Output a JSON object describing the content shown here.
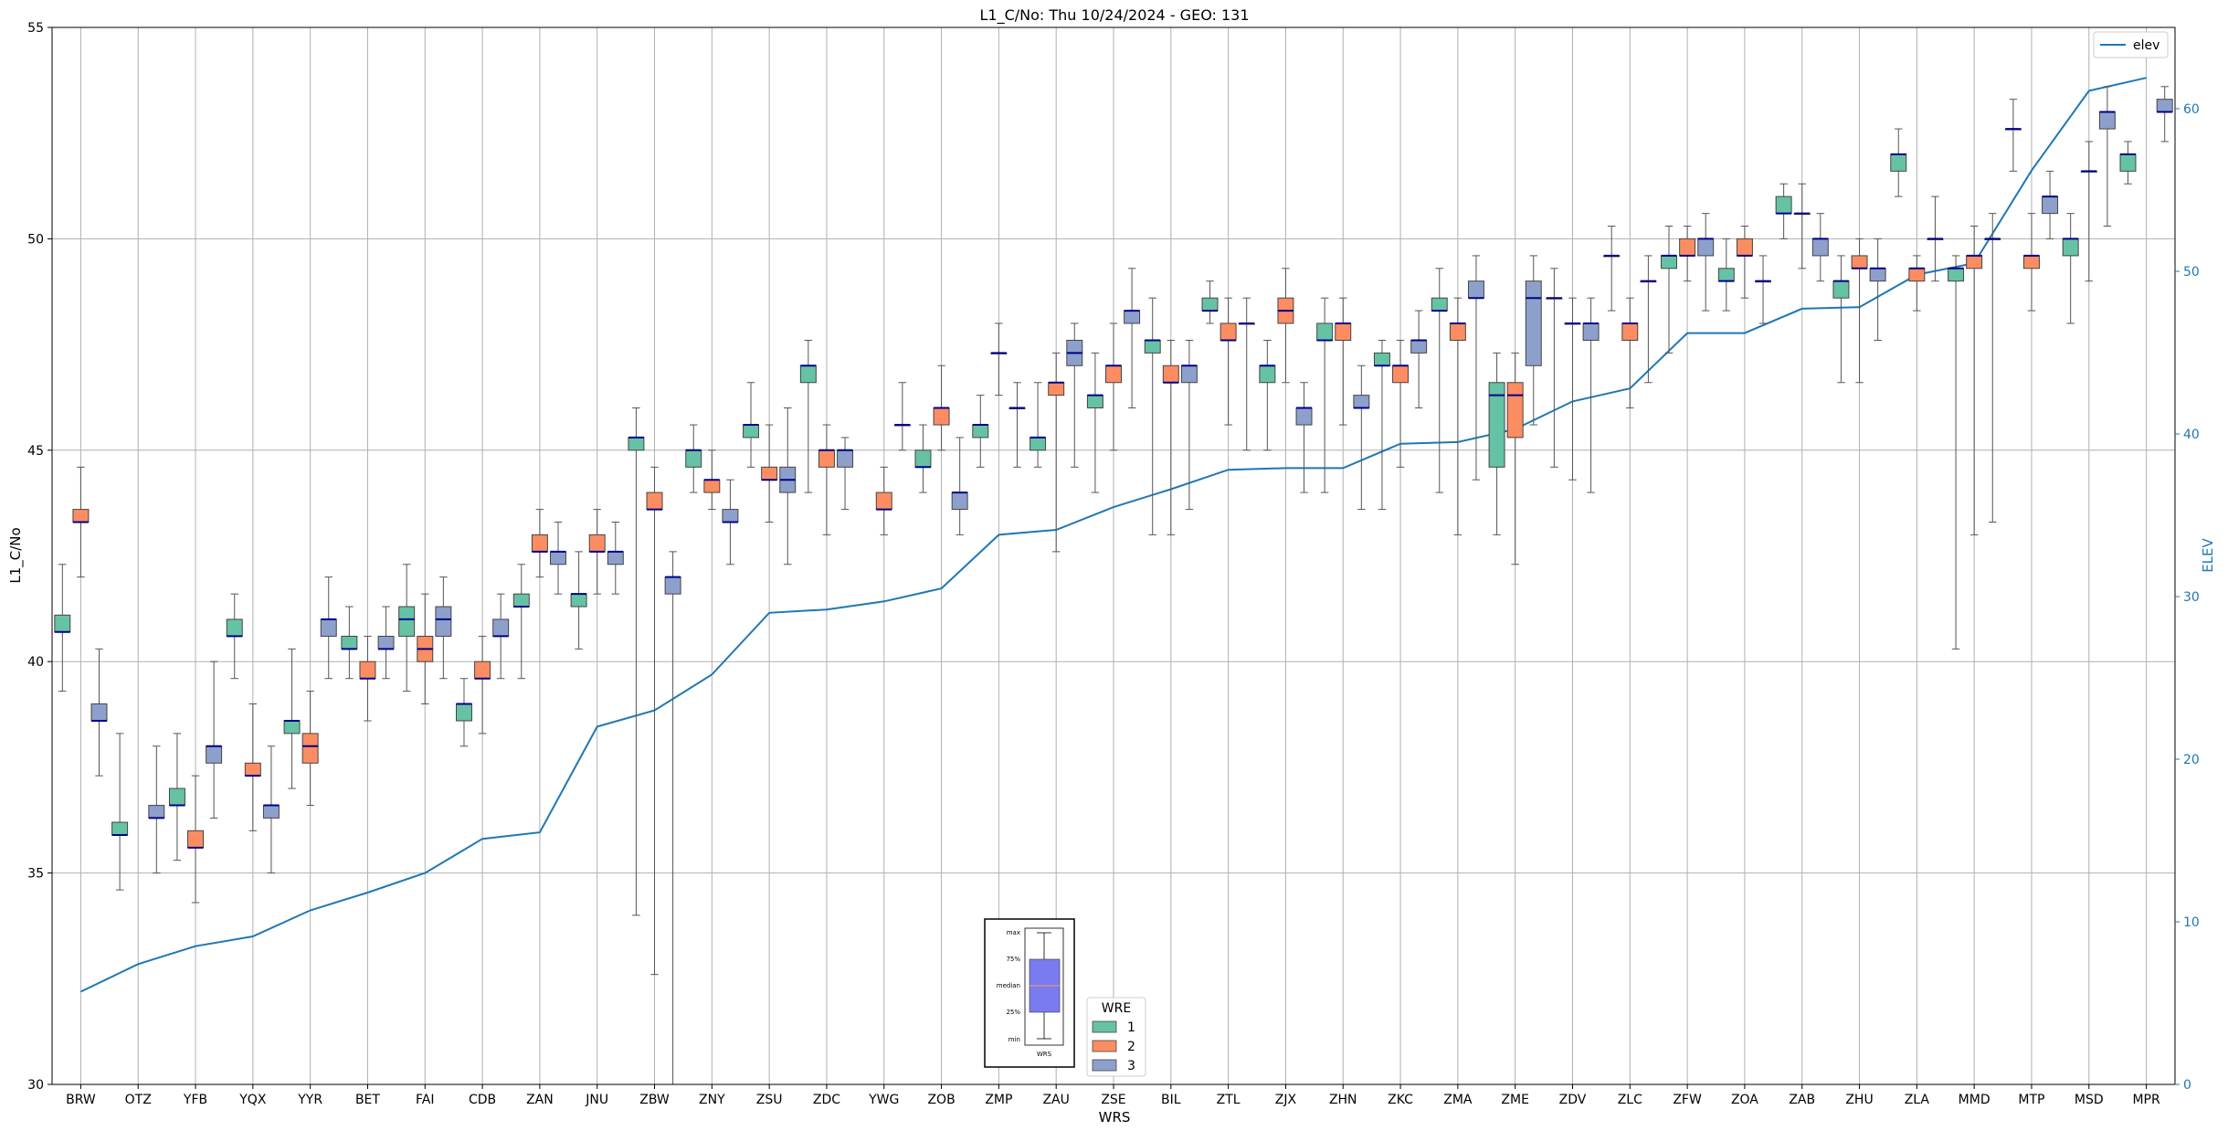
{
  "chart_data": {
    "type": "box",
    "title": "L1_C/No: Thu 10/24/2024 - GEO: 131",
    "xlabel": "WRS",
    "ylabel": "L1_C/No",
    "y2label": "ELEV",
    "ylim": [
      30,
      55
    ],
    "y2lim": [
      0,
      65
    ],
    "yticks": [
      30,
      35,
      40,
      45,
      50,
      55
    ],
    "y2ticks": [
      0,
      10,
      20,
      30,
      40,
      50,
      60
    ],
    "grid": true,
    "categories": [
      "BRW",
      "OTZ",
      "YFB",
      "YQX",
      "YYR",
      "BET",
      "FAI",
      "CDB",
      "ZAN",
      "JNU",
      "ZBW",
      "ZNY",
      "ZSU",
      "ZDC",
      "YWG",
      "ZOB",
      "ZMP",
      "ZAU",
      "ZSE",
      "BIL",
      "ZTL",
      "ZJX",
      "ZHN",
      "ZKC",
      "ZMA",
      "ZME",
      "ZDV",
      "ZLC",
      "ZFW",
      "ZOA",
      "ZAB",
      "ZHU",
      "ZLA",
      "MMD",
      "MTP",
      "MSD",
      "MPR"
    ],
    "colors": {
      "1": "#66c2a5",
      "2": "#fc8d62",
      "3": "#8da0cb",
      "elev": "#1f77b4",
      "median": "#00008b"
    },
    "legend": {
      "title": "WRE",
      "entries": [
        "1",
        "2",
        "3"
      ],
      "position": "bottom-center"
    },
    "line_legend": {
      "label": "elev",
      "position": "top-right"
    },
    "key_box": {
      "labels": [
        "max",
        "75%",
        "median",
        "25%",
        "min"
      ],
      "xlabel": "WRS"
    },
    "elev": [
      5.7,
      7.4,
      8.5,
      9.1,
      10.7,
      11.8,
      13.0,
      15.1,
      15.5,
      22.0,
      23.0,
      25.2,
      29.0,
      29.2,
      29.7,
      30.5,
      33.8,
      34.1,
      35.5,
      36.6,
      37.8,
      37.9,
      37.9,
      39.4,
      39.5,
      40.3,
      42.0,
      42.8,
      46.2,
      46.2,
      47.7,
      47.8,
      49.8,
      50.5,
      56.2,
      61.1,
      61.9
    ],
    "boxes": [
      {
        "cat": "BRW",
        "wre": "1",
        "min": 39.3,
        "q1": 40.7,
        "median": 40.7,
        "q3": 41.1,
        "max": 42.3
      },
      {
        "cat": "BRW",
        "wre": "2",
        "min": 42.0,
        "q1": 43.3,
        "median": 43.3,
        "q3": 43.6,
        "max": 44.6
      },
      {
        "cat": "BRW",
        "wre": "3",
        "min": 37.3,
        "q1": 38.6,
        "median": 38.6,
        "q3": 39.0,
        "max": 40.3
      },
      {
        "cat": "OTZ",
        "wre": "1",
        "min": 34.6,
        "q1": 35.9,
        "median": 35.9,
        "q3": 36.2,
        "max": 38.3
      },
      {
        "cat": "OTZ",
        "wre": "3",
        "min": 35.0,
        "q1": 36.3,
        "median": 36.3,
        "q3": 36.6,
        "max": 38.0
      },
      {
        "cat": "YFB",
        "wre": "1",
        "min": 35.3,
        "q1": 36.6,
        "median": 36.6,
        "q3": 37.0,
        "max": 38.3
      },
      {
        "cat": "YFB",
        "wre": "2",
        "min": 34.3,
        "q1": 35.6,
        "median": 35.6,
        "q3": 36.0,
        "max": 37.3
      },
      {
        "cat": "YFB",
        "wre": "3",
        "min": 36.3,
        "q1": 37.6,
        "median": 38.0,
        "q3": 38.0,
        "max": 40.0
      },
      {
        "cat": "YQX",
        "wre": "1",
        "min": 39.6,
        "q1": 40.6,
        "median": 40.6,
        "q3": 41.0,
        "max": 41.6
      },
      {
        "cat": "YQX",
        "wre": "2",
        "min": 36.0,
        "q1": 37.3,
        "median": 37.3,
        "q3": 37.6,
        "max": 39.0
      },
      {
        "cat": "YQX",
        "wre": "3",
        "min": 35.0,
        "q1": 36.3,
        "median": 36.6,
        "q3": 36.6,
        "max": 38.0
      },
      {
        "cat": "YYR",
        "wre": "1",
        "min": 37.0,
        "q1": 38.3,
        "median": 38.6,
        "q3": 38.6,
        "max": 40.3
      },
      {
        "cat": "YYR",
        "wre": "2",
        "min": 36.6,
        "q1": 37.6,
        "median": 38.0,
        "q3": 38.3,
        "max": 39.3
      },
      {
        "cat": "YYR",
        "wre": "3",
        "min": 39.6,
        "q1": 40.6,
        "median": 41.0,
        "q3": 41.0,
        "max": 42.0
      },
      {
        "cat": "BET",
        "wre": "1",
        "min": 39.6,
        "q1": 40.3,
        "median": 40.3,
        "q3": 40.6,
        "max": 41.3
      },
      {
        "cat": "BET",
        "wre": "2",
        "min": 38.6,
        "q1": 39.6,
        "median": 39.6,
        "q3": 40.0,
        "max": 40.6
      },
      {
        "cat": "BET",
        "wre": "3",
        "min": 39.6,
        "q1": 40.3,
        "median": 40.3,
        "q3": 40.6,
        "max": 41.3
      },
      {
        "cat": "FAI",
        "wre": "1",
        "min": 39.3,
        "q1": 40.6,
        "median": 41.0,
        "q3": 41.3,
        "max": 42.3
      },
      {
        "cat": "FAI",
        "wre": "2",
        "min": 39.0,
        "q1": 40.0,
        "median": 40.3,
        "q3": 40.6,
        "max": 41.6
      },
      {
        "cat": "FAI",
        "wre": "3",
        "min": 39.6,
        "q1": 40.6,
        "median": 41.0,
        "q3": 41.3,
        "max": 42.0
      },
      {
        "cat": "CDB",
        "wre": "1",
        "min": 38.0,
        "q1": 38.6,
        "median": 39.0,
        "q3": 39.0,
        "max": 39.6
      },
      {
        "cat": "CDB",
        "wre": "2",
        "min": 38.3,
        "q1": 39.6,
        "median": 39.6,
        "q3": 40.0,
        "max": 40.6
      },
      {
        "cat": "CDB",
        "wre": "3",
        "min": 39.6,
        "q1": 40.6,
        "median": 40.6,
        "q3": 41.0,
        "max": 41.6
      },
      {
        "cat": "ZAN",
        "wre": "1",
        "min": 39.6,
        "q1": 41.3,
        "median": 41.3,
        "q3": 41.6,
        "max": 42.3
      },
      {
        "cat": "ZAN",
        "wre": "2",
        "min": 42.0,
        "q1": 42.6,
        "median": 42.6,
        "q3": 43.0,
        "max": 43.6
      },
      {
        "cat": "ZAN",
        "wre": "3",
        "min": 41.6,
        "q1": 42.3,
        "median": 42.6,
        "q3": 42.6,
        "max": 43.3
      },
      {
        "cat": "JNU",
        "wre": "1",
        "min": 40.3,
        "q1": 41.3,
        "median": 41.6,
        "q3": 41.6,
        "max": 42.6
      },
      {
        "cat": "JNU",
        "wre": "2",
        "min": 41.6,
        "q1": 42.6,
        "median": 42.6,
        "q3": 43.0,
        "max": 43.6
      },
      {
        "cat": "JNU",
        "wre": "3",
        "min": 41.6,
        "q1": 42.3,
        "median": 42.6,
        "q3": 42.6,
        "max": 43.3
      },
      {
        "cat": "ZBW",
        "wre": "1",
        "min": 34.0,
        "q1": 45.0,
        "median": 45.3,
        "q3": 45.3,
        "max": 46.0
      },
      {
        "cat": "ZBW",
        "wre": "2",
        "min": 32.6,
        "q1": 43.6,
        "median": 43.6,
        "q3": 44.0,
        "max": 44.6
      },
      {
        "cat": "ZBW",
        "wre": "3",
        "min": 30.0,
        "q1": 41.6,
        "median": 42.0,
        "q3": 42.0,
        "max": 42.6
      },
      {
        "cat": "ZNY",
        "wre": "1",
        "min": 44.0,
        "q1": 44.6,
        "median": 45.0,
        "q3": 45.0,
        "max": 45.6
      },
      {
        "cat": "ZNY",
        "wre": "2",
        "min": 43.6,
        "q1": 44.0,
        "median": 44.3,
        "q3": 44.3,
        "max": 45.0
      },
      {
        "cat": "ZNY",
        "wre": "3",
        "min": 42.3,
        "q1": 43.3,
        "median": 43.3,
        "q3": 43.6,
        "max": 44.3
      },
      {
        "cat": "ZSU",
        "wre": "1",
        "min": 44.6,
        "q1": 45.3,
        "median": 45.6,
        "q3": 45.6,
        "max": 46.6
      },
      {
        "cat": "ZSU",
        "wre": "2",
        "min": 43.3,
        "q1": 44.3,
        "median": 44.3,
        "q3": 44.6,
        "max": 45.6
      },
      {
        "cat": "ZSU",
        "wre": "3",
        "min": 42.3,
        "q1": 44.0,
        "median": 44.3,
        "q3": 44.6,
        "max": 46.0
      },
      {
        "cat": "ZDC",
        "wre": "1",
        "min": 44.0,
        "q1": 46.6,
        "median": 47.0,
        "q3": 47.0,
        "max": 47.6
      },
      {
        "cat": "ZDC",
        "wre": "2",
        "min": 43.0,
        "q1": 44.6,
        "median": 45.0,
        "q3": 45.0,
        "max": 45.6
      },
      {
        "cat": "ZDC",
        "wre": "3",
        "min": 43.6,
        "q1": 44.6,
        "median": 45.0,
        "q3": 45.0,
        "max": 45.3
      },
      {
        "cat": "YWG",
        "wre": "2",
        "min": 43.0,
        "q1": 43.6,
        "median": 43.6,
        "q3": 44.0,
        "max": 44.6
      },
      {
        "cat": "YWG",
        "wre": "3",
        "min": 45.0,
        "q1": 45.6,
        "median": 45.6,
        "q3": 45.6,
        "max": 46.6
      },
      {
        "cat": "ZOB",
        "wre": "1",
        "min": 44.0,
        "q1": 44.6,
        "median": 44.6,
        "q3": 45.0,
        "max": 45.6
      },
      {
        "cat": "ZOB",
        "wre": "2",
        "min": 45.0,
        "q1": 45.6,
        "median": 46.0,
        "q3": 46.0,
        "max": 47.0
      },
      {
        "cat": "ZOB",
        "wre": "3",
        "min": 43.0,
        "q1": 43.6,
        "median": 44.0,
        "q3": 44.0,
        "max": 45.3
      },
      {
        "cat": "ZMP",
        "wre": "1",
        "min": 44.6,
        "q1": 45.3,
        "median": 45.6,
        "q3": 45.6,
        "max": 46.3
      },
      {
        "cat": "ZMP",
        "wre": "2",
        "min": 46.3,
        "q1": 47.3,
        "median": 47.3,
        "q3": 47.3,
        "max": 48.0
      },
      {
        "cat": "ZMP",
        "wre": "3",
        "min": 44.6,
        "q1": 46.0,
        "median": 46.0,
        "q3": 46.0,
        "max": 46.6
      },
      {
        "cat": "ZAU",
        "wre": "1",
        "min": 44.6,
        "q1": 45.0,
        "median": 45.3,
        "q3": 45.3,
        "max": 46.6
      },
      {
        "cat": "ZAU",
        "wre": "2",
        "min": 42.6,
        "q1": 46.3,
        "median": 46.6,
        "q3": 46.6,
        "max": 47.3
      },
      {
        "cat": "ZAU",
        "wre": "3",
        "min": 44.6,
        "q1": 47.0,
        "median": 47.3,
        "q3": 47.6,
        "max": 48.0
      },
      {
        "cat": "ZSE",
        "wre": "1",
        "min": 44.0,
        "q1": 46.0,
        "median": 46.3,
        "q3": 46.3,
        "max": 47.3
      },
      {
        "cat": "ZSE",
        "wre": "2",
        "min": 45.0,
        "q1": 46.6,
        "median": 47.0,
        "q3": 47.0,
        "max": 48.0
      },
      {
        "cat": "ZSE",
        "wre": "3",
        "min": 46.0,
        "q1": 48.0,
        "median": 48.3,
        "q3": 48.3,
        "max": 49.3
      },
      {
        "cat": "BIL",
        "wre": "1",
        "min": 43.0,
        "q1": 47.3,
        "median": 47.6,
        "q3": 47.6,
        "max": 48.6
      },
      {
        "cat": "BIL",
        "wre": "2",
        "min": 43.0,
        "q1": 46.6,
        "median": 46.6,
        "q3": 47.0,
        "max": 47.6
      },
      {
        "cat": "BIL",
        "wre": "3",
        "min": 43.6,
        "q1": 46.6,
        "median": 47.0,
        "q3": 47.0,
        "max": 47.6
      },
      {
        "cat": "ZTL",
        "wre": "1",
        "min": 48.0,
        "q1": 48.3,
        "median": 48.3,
        "q3": 48.6,
        "max": 49.0
      },
      {
        "cat": "ZTL",
        "wre": "2",
        "min": 45.6,
        "q1": 47.6,
        "median": 47.6,
        "q3": 48.0,
        "max": 48.6
      },
      {
        "cat": "ZTL",
        "wre": "3",
        "min": 45.0,
        "q1": 48.0,
        "median": 48.0,
        "q3": 48.0,
        "max": 48.6
      },
      {
        "cat": "ZJX",
        "wre": "1",
        "min": 45.0,
        "q1": 46.6,
        "median": 47.0,
        "q3": 47.0,
        "max": 47.6
      },
      {
        "cat": "ZJX",
        "wre": "2",
        "min": 46.6,
        "q1": 48.0,
        "median": 48.3,
        "q3": 48.6,
        "max": 49.3
      },
      {
        "cat": "ZJX",
        "wre": "3",
        "min": 44.0,
        "q1": 45.6,
        "median": 46.0,
        "q3": 46.0,
        "max": 46.6
      },
      {
        "cat": "ZHN",
        "wre": "1",
        "min": 44.0,
        "q1": 47.6,
        "median": 47.6,
        "q3": 48.0,
        "max": 48.6
      },
      {
        "cat": "ZHN",
        "wre": "2",
        "min": 45.6,
        "q1": 47.6,
        "median": 48.0,
        "q3": 48.0,
        "max": 48.6
      },
      {
        "cat": "ZHN",
        "wre": "3",
        "min": 43.6,
        "q1": 46.0,
        "median": 46.0,
        "q3": 46.3,
        "max": 47.0
      },
      {
        "cat": "ZKC",
        "wre": "1",
        "min": 43.6,
        "q1": 47.0,
        "median": 47.0,
        "q3": 47.3,
        "max": 47.6
      },
      {
        "cat": "ZKC",
        "wre": "2",
        "min": 44.6,
        "q1": 46.6,
        "median": 47.0,
        "q3": 47.0,
        "max": 47.6
      },
      {
        "cat": "ZKC",
        "wre": "3",
        "min": 46.0,
        "q1": 47.3,
        "median": 47.6,
        "q3": 47.6,
        "max": 48.3
      },
      {
        "cat": "ZMA",
        "wre": "1",
        "min": 44.0,
        "q1": 48.3,
        "median": 48.3,
        "q3": 48.6,
        "max": 49.3
      },
      {
        "cat": "ZMA",
        "wre": "2",
        "min": 43.0,
        "q1": 47.6,
        "median": 48.0,
        "q3": 48.0,
        "max": 48.6
      },
      {
        "cat": "ZMA",
        "wre": "3",
        "min": 44.3,
        "q1": 48.6,
        "median": 48.6,
        "q3": 49.0,
        "max": 49.6
      },
      {
        "cat": "ZME",
        "wre": "1",
        "min": 43.0,
        "q1": 44.6,
        "median": 46.3,
        "q3": 46.6,
        "max": 47.3
      },
      {
        "cat": "ZME",
        "wre": "2",
        "min": 42.3,
        "q1": 45.3,
        "median": 46.3,
        "q3": 46.6,
        "max": 47.3
      },
      {
        "cat": "ZME",
        "wre": "3",
        "min": 45.6,
        "q1": 47.0,
        "median": 48.6,
        "q3": 49.0,
        "max": 49.6
      },
      {
        "cat": "ZDV",
        "wre": "1",
        "min": 44.6,
        "q1": 48.6,
        "median": 48.6,
        "q3": 48.6,
        "max": 49.3
      },
      {
        "cat": "ZDV",
        "wre": "2",
        "min": 44.3,
        "q1": 48.0,
        "median": 48.0,
        "q3": 48.0,
        "max": 48.6
      },
      {
        "cat": "ZDV",
        "wre": "3",
        "min": 44.0,
        "q1": 47.6,
        "median": 48.0,
        "q3": 48.0,
        "max": 48.6
      },
      {
        "cat": "ZLC",
        "wre": "1",
        "min": 48.3,
        "q1": 49.6,
        "median": 49.6,
        "q3": 49.6,
        "max": 50.3
      },
      {
        "cat": "ZLC",
        "wre": "2",
        "min": 46.0,
        "q1": 47.6,
        "median": 48.0,
        "q3": 48.0,
        "max": 48.6
      },
      {
        "cat": "ZLC",
        "wre": "3",
        "min": 46.6,
        "q1": 49.0,
        "median": 49.0,
        "q3": 49.0,
        "max": 49.6
      },
      {
        "cat": "ZFW",
        "wre": "1",
        "min": 47.3,
        "q1": 49.3,
        "median": 49.6,
        "q3": 49.6,
        "max": 50.3
      },
      {
        "cat": "ZFW",
        "wre": "2",
        "min": 49.0,
        "q1": 49.6,
        "median": 49.6,
        "q3": 50.0,
        "max": 50.3
      },
      {
        "cat": "ZFW",
        "wre": "3",
        "min": 48.3,
        "q1": 49.6,
        "median": 50.0,
        "q3": 50.0,
        "max": 50.6
      },
      {
        "cat": "ZOA",
        "wre": "1",
        "min": 48.3,
        "q1": 49.0,
        "median": 49.0,
        "q3": 49.3,
        "max": 50.0
      },
      {
        "cat": "ZOA",
        "wre": "2",
        "min": 48.6,
        "q1": 49.6,
        "median": 49.6,
        "q3": 50.0,
        "max": 50.3
      },
      {
        "cat": "ZOA",
        "wre": "3",
        "min": 48.0,
        "q1": 49.0,
        "median": 49.0,
        "q3": 49.0,
        "max": 49.6
      },
      {
        "cat": "ZAB",
        "wre": "1",
        "min": 50.0,
        "q1": 50.6,
        "median": 50.6,
        "q3": 51.0,
        "max": 51.3
      },
      {
        "cat": "ZAB",
        "wre": "2",
        "min": 49.3,
        "q1": 50.6,
        "median": 50.6,
        "q3": 50.6,
        "max": 51.3
      },
      {
        "cat": "ZAB",
        "wre": "3",
        "min": 49.0,
        "q1": 49.6,
        "median": 50.0,
        "q3": 50.0,
        "max": 50.6
      },
      {
        "cat": "ZHU",
        "wre": "1",
        "min": 46.6,
        "q1": 48.6,
        "median": 49.0,
        "q3": 49.0,
        "max": 49.6
      },
      {
        "cat": "ZHU",
        "wre": "2",
        "min": 46.6,
        "q1": 49.3,
        "median": 49.3,
        "q3": 49.6,
        "max": 50.0
      },
      {
        "cat": "ZHU",
        "wre": "3",
        "min": 47.6,
        "q1": 49.0,
        "median": 49.3,
        "q3": 49.3,
        "max": 50.0
      },
      {
        "cat": "ZLA",
        "wre": "1",
        "min": 51.0,
        "q1": 51.6,
        "median": 52.0,
        "q3": 52.0,
        "max": 52.6
      },
      {
        "cat": "ZLA",
        "wre": "2",
        "min": 48.3,
        "q1": 49.0,
        "median": 49.3,
        "q3": 49.3,
        "max": 49.6
      },
      {
        "cat": "ZLA",
        "wre": "3",
        "min": 49.0,
        "q1": 50.0,
        "median": 50.0,
        "q3": 50.0,
        "max": 51.0
      },
      {
        "cat": "MMD",
        "wre": "1",
        "min": 40.3,
        "q1": 49.0,
        "median": 49.3,
        "q3": 49.3,
        "max": 49.6
      },
      {
        "cat": "MMD",
        "wre": "2",
        "min": 43.0,
        "q1": 49.3,
        "median": 49.6,
        "q3": 49.6,
        "max": 50.3
      },
      {
        "cat": "MMD",
        "wre": "3",
        "min": 43.3,
        "q1": 50.0,
        "median": 50.0,
        "q3": 50.0,
        "max": 50.6
      },
      {
        "cat": "MTP",
        "wre": "1",
        "min": 51.6,
        "q1": 52.6,
        "median": 52.6,
        "q3": 52.6,
        "max": 53.3
      },
      {
        "cat": "MTP",
        "wre": "2",
        "min": 48.3,
        "q1": 49.3,
        "median": 49.6,
        "q3": 49.6,
        "max": 50.6
      },
      {
        "cat": "MTP",
        "wre": "3",
        "min": 50.0,
        "q1": 50.6,
        "median": 51.0,
        "q3": 51.0,
        "max": 51.6
      },
      {
        "cat": "MSD",
        "wre": "1",
        "min": 48.0,
        "q1": 49.6,
        "median": 50.0,
        "q3": 50.0,
        "max": 50.6
      },
      {
        "cat": "MSD",
        "wre": "2",
        "min": 49.0,
        "q1": 51.6,
        "median": 51.6,
        "q3": 51.6,
        "max": 52.3
      },
      {
        "cat": "MSD",
        "wre": "3",
        "min": 50.3,
        "q1": 52.6,
        "median": 53.0,
        "q3": 53.0,
        "max": 53.6
      },
      {
        "cat": "MPR",
        "wre": "1",
        "min": 51.3,
        "q1": 51.6,
        "median": 52.0,
        "q3": 52.0,
        "max": 52.3
      },
      {
        "cat": "MPR",
        "wre": "3",
        "min": 52.3,
        "q1": 53.0,
        "median": 53.0,
        "q3": 53.3,
        "max": 53.6
      }
    ]
  }
}
